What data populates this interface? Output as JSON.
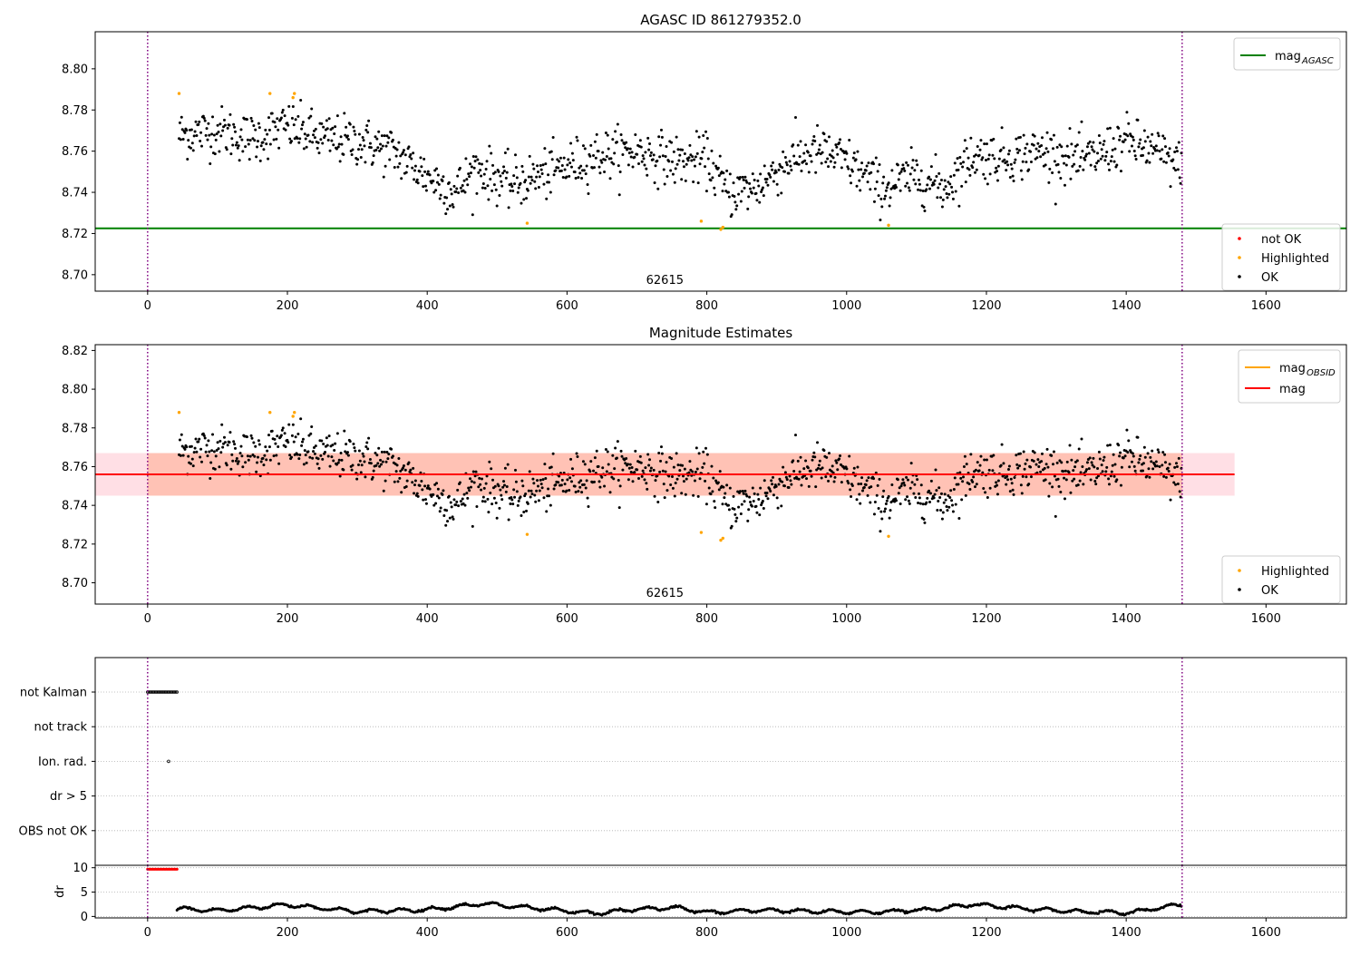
{
  "chart_data": [
    {
      "type": "scatter",
      "title": "AGASC ID 861279352.0",
      "xlabel": "",
      "ylabel": "",
      "xlim": [
        -75,
        1715
      ],
      "ylim": [
        8.692,
        8.818
      ],
      "xticks": [
        0,
        200,
        400,
        600,
        800,
        1000,
        1200,
        1400,
        1600
      ],
      "yticks": [
        8.7,
        8.72,
        8.74,
        8.76,
        8.78,
        8.8
      ],
      "ytick_labels": [
        "8.70",
        "8.72",
        "8.74",
        "8.76",
        "8.78",
        "8.80"
      ],
      "obsid_label": "62615",
      "obsid_label_x": 740,
      "obs_boundaries": [
        0,
        1480
      ],
      "reference_line": {
        "value": 8.7225,
        "x_range": [
          -75,
          1715
        ],
        "color": "#008000"
      },
      "legend_lines": [
        {
          "label": "mag",
          "subscript": "AGASC",
          "color": "#008000"
        }
      ],
      "legend_points": [
        {
          "label": "not OK",
          "color": "#ff0000"
        },
        {
          "label": "Highlighted",
          "color": "#ffa500"
        },
        {
          "label": "OK",
          "color": "#000000"
        }
      ],
      "series": [
        {
          "name": "OK",
          "color": "#000000",
          "trend_x": [
            45,
            100,
            150,
            200,
            250,
            300,
            350,
            400,
            440,
            470,
            520,
            580,
            640,
            700,
            760,
            800,
            830,
            870,
            920,
            960,
            1000,
            1050,
            1100,
            1140,
            1180,
            1220,
            1280,
            1340,
            1400,
            1440,
            1480
          ],
          "trend_y": [
            8.768,
            8.77,
            8.766,
            8.772,
            8.766,
            8.765,
            8.76,
            8.748,
            8.74,
            8.752,
            8.744,
            8.75,
            8.758,
            8.76,
            8.755,
            8.756,
            8.74,
            8.742,
            8.756,
            8.76,
            8.755,
            8.742,
            8.748,
            8.742,
            8.758,
            8.757,
            8.76,
            8.755,
            8.765,
            8.76,
            8.752
          ],
          "scatter_sd": 0.0075,
          "x_range": [
            45,
            1480
          ]
        },
        {
          "name": "Highlighted",
          "color": "#ffa500",
          "x": [
            45,
            175,
            208,
            210,
            543,
            792,
            820,
            823,
            1060
          ],
          "y": [
            8.788,
            8.788,
            8.786,
            8.788,
            8.725,
            8.726,
            8.722,
            8.723,
            8.724
          ]
        }
      ]
    },
    {
      "type": "scatter",
      "title": "Magnitude Estimates",
      "xlabel": "",
      "ylabel": "",
      "xlim": [
        -75,
        1715
      ],
      "ylim": [
        8.689,
        8.823
      ],
      "xticks": [
        0,
        200,
        400,
        600,
        800,
        1000,
        1200,
        1400,
        1600
      ],
      "yticks": [
        8.7,
        8.72,
        8.74,
        8.76,
        8.78,
        8.8,
        8.82
      ],
      "ytick_labels": [
        "8.70",
        "8.72",
        "8.74",
        "8.76",
        "8.78",
        "8.80",
        "8.82"
      ],
      "obsid_label": "62615",
      "obsid_label_x": 740,
      "obs_boundaries": [
        0,
        1480
      ],
      "mag_line": {
        "value": 8.756,
        "x_range": [
          -75,
          1555
        ],
        "color": "#ff0000"
      },
      "mag_band": {
        "low": 8.745,
        "high": 8.767,
        "x_range": [
          -75,
          1555
        ],
        "color": "#ffc0cb"
      },
      "obsid_band": {
        "low": 8.745,
        "high": 8.767,
        "x_range": [
          0,
          1480
        ],
        "color": "#ffa07a"
      },
      "legend_lines": [
        {
          "label": "mag",
          "subscript": "OBSID",
          "color": "#ffa500"
        },
        {
          "label": "mag",
          "subscript": "",
          "color": "#ff0000"
        }
      ],
      "legend_points": [
        {
          "label": "Highlighted",
          "color": "#ffa500"
        },
        {
          "label": "OK",
          "color": "#000000"
        }
      ]
    },
    {
      "type": "scatter",
      "title": "",
      "xlim": [
        -75,
        1715
      ],
      "xticks": [
        0,
        200,
        400,
        600,
        800,
        1000,
        1200,
        1400,
        1600
      ],
      "obs_boundaries": [
        0,
        1480
      ],
      "flag_categories": [
        "not Kalman",
        "not track",
        "Ion. rad.",
        "dr > 5",
        "OBS not OK"
      ],
      "flag_events": [
        {
          "category": "not Kalman",
          "x_range": [
            0,
            42
          ],
          "step": 2
        },
        {
          "category": "Ion. rad.",
          "x": [
            30
          ]
        }
      ]
    },
    {
      "type": "scatter",
      "title": "",
      "ylabel": "dr",
      "xlim": [
        -75,
        1715
      ],
      "ylim": [
        -0.3,
        10.5
      ],
      "xticks": [
        0,
        200,
        400,
        600,
        800,
        1000,
        1200,
        1400,
        1600
      ],
      "yticks": [
        0,
        5,
        10
      ],
      "ytick_labels": [
        "0",
        "5",
        "10"
      ],
      "obs_boundaries": [
        0,
        1480
      ],
      "series": [
        {
          "name": "dr > 5",
          "color": "#ff0000",
          "x_range": [
            0,
            42
          ],
          "value": 9.7
        },
        {
          "name": "dr",
          "color": "#000000",
          "x_range": [
            42,
            1480
          ],
          "trend_x": [
            42,
            100,
            200,
            300,
            400,
            480,
            560,
            640,
            700,
            760,
            800,
            880,
            960,
            1040,
            1120,
            1180,
            1260,
            1340,
            1400,
            1480
          ],
          "trend_y": [
            1.6,
            1.2,
            2.4,
            1.0,
            1.4,
            2.6,
            1.6,
            0.6,
            1.5,
            1.8,
            0.8,
            1.3,
            1.0,
            0.9,
            1.4,
            2.5,
            1.5,
            1.0,
            0.7,
            2.5
          ]
        }
      ]
    }
  ]
}
